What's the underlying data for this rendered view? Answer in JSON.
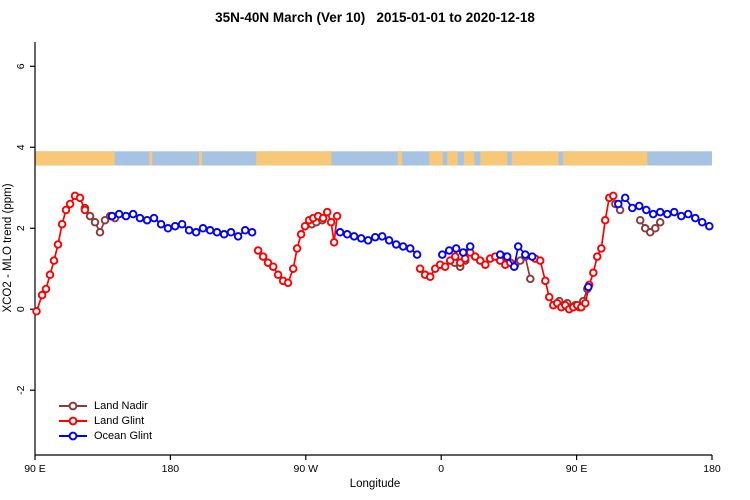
{
  "title": "35N-40N March (Ver 10)   2015-01-01 to 2020-12-18",
  "chart_data": {
    "type": "line",
    "title": "35N-40N March (Ver 10)   2015-01-01 to 2020-12-18",
    "xlabel": "Longitude",
    "ylabel": "XCO2 - MLO trend (ppm)",
    "xlim": [
      90,
      540
    ],
    "ylim": [
      -3.6,
      6.6
    ],
    "grid": false,
    "legend_position": "bottom-left",
    "xticks": [
      {
        "v": 90,
        "label": "90 E"
      },
      {
        "v": 180,
        "label": "180"
      },
      {
        "v": 270,
        "label": "90 W"
      },
      {
        "v": 360,
        "label": "0"
      },
      {
        "v": 450,
        "label": "90 E"
      },
      {
        "v": 540,
        "label": "180"
      }
    ],
    "yticks": [
      {
        "v": -2,
        "label": "-2"
      },
      {
        "v": 0,
        "label": "0"
      },
      {
        "v": 2,
        "label": "2"
      },
      {
        "v": 4,
        "label": "4"
      },
      {
        "v": 6,
        "label": "6"
      }
    ],
    "map_band": {
      "y_range": [
        3.55,
        3.9
      ],
      "ocean_color": "#A6C3E3",
      "land_color": "#F6C878",
      "land_segments": [
        [
          90,
          143
        ],
        [
          166,
          168
        ],
        [
          199,
          201
        ],
        [
          237,
          287
        ],
        [
          331,
          334
        ],
        [
          352,
          361
        ],
        [
          364,
          371
        ],
        [
          375,
          382
        ],
        [
          386,
          404
        ],
        [
          407,
          438
        ],
        [
          441,
          497
        ]
      ]
    },
    "legend": [
      {
        "label": "Land Nadir",
        "color": "#8B3A3A"
      },
      {
        "label": "Land Glint",
        "color": "#FF0000"
      },
      {
        "label": "Ocean Glint",
        "color": "#0000FF"
      }
    ],
    "series": [
      {
        "name": "Land Nadir",
        "color": "#8B3A3A",
        "segments": [
          [
            [
              123.2,
              2.5
            ],
            [
              126.6,
              2.3
            ],
            [
              129.9,
              2.15
            ],
            [
              133.2,
              1.9
            ],
            [
              136.5,
              2.2
            ],
            [
              139.9,
              2.3
            ],
            [
              143.2,
              2.25
            ]
          ],
          [
            [
              274,
              2.1
            ],
            [
              277,
              2.15
            ],
            [
              281,
              2.2
            ]
          ],
          [
            [
              369,
              1.15
            ],
            [
              372.6,
              1.05
            ],
            [
              376,
              1.2
            ]
          ],
          [
            [
              402.6,
              1.3
            ],
            [
              405.9,
              1.15
            ],
            [
              409.2,
              1.1
            ],
            [
              412.6,
              1.2
            ],
            [
              415.9,
              1.3
            ],
            [
              419.2,
              0.75
            ]
          ],
          [
            [
              438.5,
              0.2
            ],
            [
              441.1,
              0.1
            ],
            [
              443.8,
              0.15
            ],
            [
              446.4,
              0.05
            ],
            [
              449.1,
              0.1
            ],
            [
              451.8,
              0.05
            ],
            [
              454.4,
              0.2
            ],
            [
              457.1,
              0.5
            ]
          ],
          [
            [
              475.7,
              2.6
            ],
            [
              478.9,
              2.45
            ]
          ],
          [
            [
              492.3,
              2.2
            ],
            [
              495.6,
              2.0
            ],
            [
              498.9,
              1.9
            ],
            [
              502.3,
              2.0
            ],
            [
              505.6,
              2.15
            ]
          ]
        ]
      },
      {
        "name": "Land Glint",
        "color": "#FF0000",
        "segments": [
          [
            [
              91,
              -0.05
            ],
            [
              94.7,
              0.35
            ],
            [
              97.3,
              0.5
            ],
            [
              100,
              0.85
            ],
            [
              102.6,
              1.2
            ],
            [
              105.3,
              1.6
            ],
            [
              108,
              2.1
            ],
            [
              110.6,
              2.45
            ],
            [
              113.3,
              2.6
            ],
            [
              116.6,
              2.8
            ],
            [
              119.9,
              2.75
            ],
            [
              123.2,
              2.45
            ]
          ],
          [
            [
              238.3,
              1.45
            ],
            [
              241.6,
              1.3
            ],
            [
              244.9,
              1.15
            ],
            [
              248.3,
              1.05
            ],
            [
              251.6,
              0.85
            ],
            [
              254.9,
              0.7
            ],
            [
              258.2,
              0.65
            ],
            [
              261.6,
              1.0
            ],
            [
              264.2,
              1.5
            ],
            [
              266.9,
              1.85
            ],
            [
              269.5,
              2.05
            ],
            [
              272.2,
              2.2
            ],
            [
              274.9,
              2.25
            ],
            [
              278.2,
              2.3
            ],
            [
              281.5,
              2.25
            ],
            [
              284.2,
              2.4
            ],
            [
              286.8,
              2.15
            ],
            [
              288.8,
              1.65
            ],
            [
              290.8,
              2.3
            ]
          ],
          [
            [
              346,
              1.0
            ],
            [
              349.3,
              0.85
            ],
            [
              352.7,
              0.8
            ],
            [
              356,
              1.0
            ],
            [
              359.3,
              1.1
            ],
            [
              362.6,
              1.05
            ],
            [
              366,
              1.2
            ],
            [
              369.3,
              1.3
            ],
            [
              372.6,
              1.15
            ],
            [
              375.9,
              1.25
            ],
            [
              379.3,
              1.4
            ],
            [
              382.6,
              1.3
            ],
            [
              385.9,
              1.2
            ],
            [
              389.3,
              1.1
            ],
            [
              392.6,
              1.25
            ],
            [
              395.9,
              1.3
            ],
            [
              399.2,
              1.2
            ],
            [
              402.6,
              1.1
            ],
            [
              405.9,
              1.15
            ]
          ],
          [
            [
              422.5,
              1.25
            ],
            [
              425.8,
              1.2
            ],
            [
              429.2,
              0.7
            ],
            [
              431.8,
              0.3
            ],
            [
              434.5,
              0.1
            ],
            [
              437.1,
              0.15
            ],
            [
              439.8,
              0.05
            ],
            [
              442.5,
              0.1
            ],
            [
              445.1,
              0.0
            ],
            [
              447.8,
              0.05
            ],
            [
              450.4,
              0.1
            ],
            [
              453.1,
              0.05
            ],
            [
              455.8,
              0.15
            ],
            [
              458.4,
              0.6
            ],
            [
              461.1,
              0.9
            ],
            [
              463.7,
              1.3
            ],
            [
              466.4,
              1.5
            ],
            [
              469,
              2.2
            ],
            [
              471.7,
              2.75
            ],
            [
              474.3,
              2.8
            ]
          ]
        ]
      },
      {
        "name": "Ocean Glint",
        "color": "#0000FF",
        "segments": [
          [
            [
              141.2,
              2.3
            ],
            [
              145.9,
              2.35
            ],
            [
              150.5,
              2.3
            ],
            [
              155.2,
              2.35
            ],
            [
              159.8,
              2.25
            ],
            [
              164.5,
              2.2
            ],
            [
              169.1,
              2.25
            ],
            [
              173.8,
              2.1
            ],
            [
              178.4,
              2.0
            ],
            [
              183.1,
              2.05
            ],
            [
              187.8,
              2.1
            ],
            [
              192.4,
              1.95
            ],
            [
              197.1,
              1.9
            ],
            [
              201.7,
              2.0
            ],
            [
              206.4,
              1.95
            ],
            [
              211,
              1.9
            ],
            [
              215.7,
              1.85
            ],
            [
              220.3,
              1.9
            ],
            [
              225,
              1.8
            ],
            [
              229.7,
              1.95
            ],
            [
              234.3,
              1.9
            ]
          ],
          [
            [
              292.8,
              1.9
            ],
            [
              297.5,
              1.85
            ],
            [
              302.1,
              1.8
            ],
            [
              306.8,
              1.75
            ],
            [
              311.4,
              1.7
            ],
            [
              316.1,
              1.78
            ],
            [
              320.8,
              1.8
            ],
            [
              325.4,
              1.7
            ],
            [
              330.1,
              1.6
            ],
            [
              334.7,
              1.55
            ],
            [
              339.4,
              1.5
            ],
            [
              344,
              1.35
            ]
          ],
          [
            [
              360.7,
              1.35
            ],
            [
              365.3,
              1.45
            ],
            [
              370,
              1.5
            ],
            [
              374.6,
              1.4
            ],
            [
              379.3,
              1.55
            ]
          ],
          [
            [
              399.2,
              1.35
            ],
            [
              403.9,
              1.3
            ],
            [
              408.5,
              1.05
            ],
            [
              411.2,
              1.55
            ],
            [
              415.9,
              1.35
            ],
            [
              420.5,
              1.3
            ]
          ],
          [
            [
              457.8,
              0.55
            ]
          ],
          [
            [
              477.7,
              2.6
            ],
            [
              482.3,
              2.75
            ],
            [
              487,
              2.5
            ],
            [
              491.6,
              2.55
            ],
            [
              496.3,
              2.45
            ],
            [
              500.9,
              2.35
            ],
            [
              505.6,
              2.4
            ],
            [
              510.3,
              2.35
            ],
            [
              514.9,
              2.4
            ],
            [
              519.6,
              2.3
            ],
            [
              524.2,
              2.35
            ],
            [
              528.9,
              2.25
            ],
            [
              533.5,
              2.15
            ],
            [
              538.2,
              2.05
            ]
          ]
        ]
      }
    ]
  }
}
